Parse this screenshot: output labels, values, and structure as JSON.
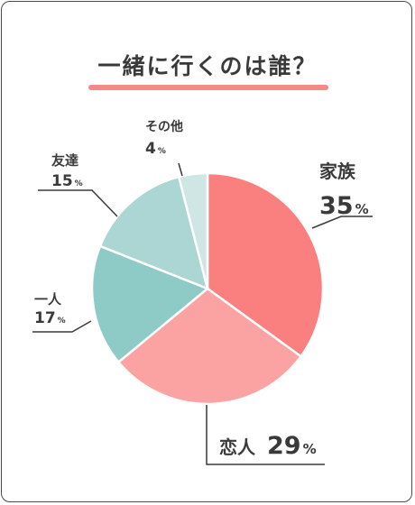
{
  "title": "一緒に行くのは誰？",
  "chart_data": {
    "type": "pie",
    "title": "一緒に行くのは誰？",
    "unit": "%",
    "slices": [
      {
        "label": "家族",
        "value": 35,
        "color": "#fa8080"
      },
      {
        "label": "恋人",
        "value": 29,
        "color": "#fba3a3"
      },
      {
        "label": "一人",
        "value": 17,
        "color": "#8ecac6"
      },
      {
        "label": "友達",
        "value": 15,
        "color": "#acd6d3"
      },
      {
        "label": "その他",
        "value": 4,
        "color": "#cfe6e4"
      }
    ],
    "highlight_color": "#f26b70"
  }
}
